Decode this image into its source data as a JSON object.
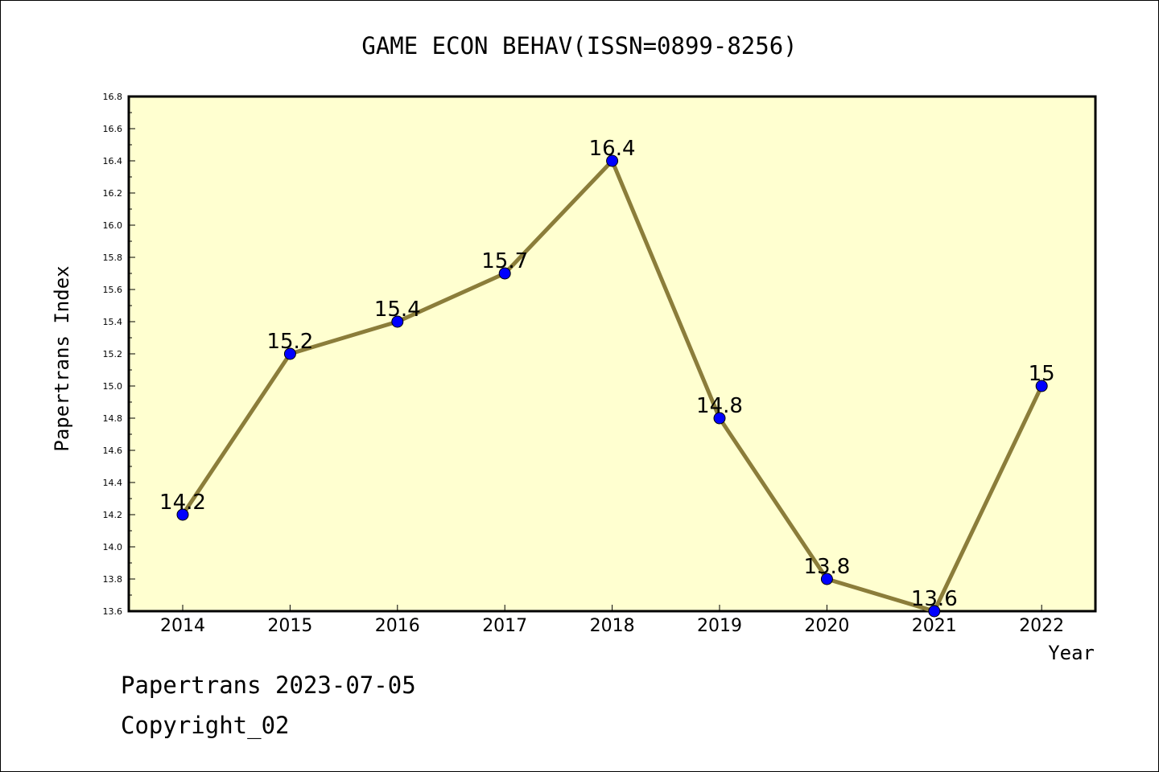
{
  "chart_data": {
    "type": "line",
    "title": "GAME ECON BEHAV(ISSN=0899-8256)",
    "xlabel": "Year",
    "ylabel": "Papertrans Index",
    "categories": [
      "2014",
      "2015",
      "2016",
      "2017",
      "2018",
      "2019",
      "2020",
      "2021",
      "2022"
    ],
    "series": [
      {
        "values": [
          14.2,
          15.2,
          15.4,
          15.7,
          16.4,
          14.8,
          13.8,
          13.6,
          15
        ],
        "data_labels": [
          "14.2",
          "15.2",
          "15.4",
          "15.7",
          "16.4",
          "14.8",
          "13.8",
          "13.6",
          "15"
        ]
      }
    ],
    "ylim": [
      13.6,
      16.8
    ],
    "yticks": [
      "13.6",
      "13.8",
      "14.0",
      "14.2",
      "14.4",
      "14.6",
      "14.8",
      "15.0",
      "15.2",
      "15.4",
      "15.6",
      "15.8",
      "16.0",
      "16.2",
      "16.4",
      "16.6",
      "16.8"
    ],
    "grid": false,
    "legend": "none",
    "colors": {
      "plot_background": "#ffffd0",
      "line": "#8b7d3a",
      "marker": "#0000ff"
    }
  },
  "footer": {
    "line1": "Papertrans 2023-07-05",
    "line2": "Copyright_02"
  }
}
